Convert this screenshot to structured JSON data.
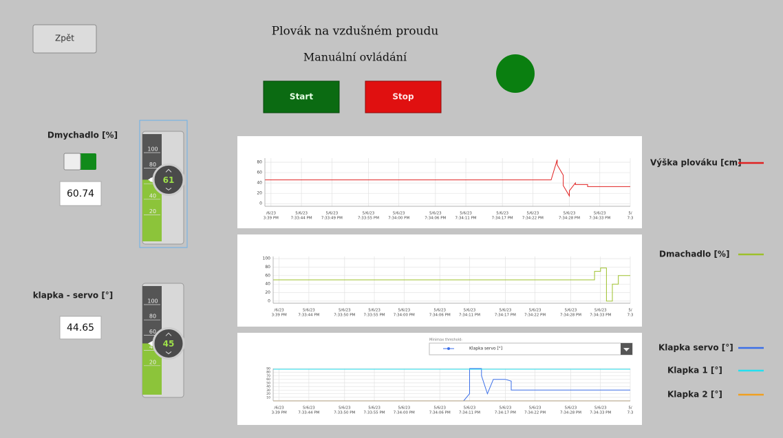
{
  "back_button": "Zpět",
  "title": "Plovák na vzdušném proudu",
  "subtitle": "Manuální ovládání",
  "start_button": "Start",
  "stop_button": "Stop",
  "controls": [
    {
      "label": "Dmychadlo [%]",
      "value": 60.74,
      "thumb_label": "61",
      "range": [
        0,
        100
      ],
      "ticks": [
        100,
        80,
        60,
        40,
        20
      ]
    },
    {
      "label": "klapka - servo [°]",
      "value": 44.65,
      "thumb_label": "45",
      "range": [
        0,
        100
      ],
      "ticks": [
        100,
        80,
        60,
        40,
        20
      ]
    }
  ],
  "chart_controls": {
    "threshold_label": "Minimax threshold:",
    "selected_series": "Klapka servo [°]"
  },
  "charts": [
    {
      "type": "line",
      "grid": true,
      "xlim": [
        "7:33:38 PM",
        "7:34:38 PM"
      ],
      "ylim": [
        -5,
        88
      ],
      "yticks": [
        0,
        20,
        40,
        60,
        80
      ],
      "xticks": [
        {
          "value": "7:33:39 PM",
          "date": "/6/23",
          "time": "3:39 PM"
        },
        {
          "value": "7:33:44 PM",
          "date": "5/6/23",
          "time": "7:33:44 PM"
        },
        {
          "value": "7:33:49 PM",
          "date": "5/6/23",
          "time": "7:33:49 PM"
        },
        {
          "value": "7:33:55 PM",
          "date": "5/6/23",
          "time": "7:33:55 PM"
        },
        {
          "value": "7:34:00 PM",
          "date": "5/6/23",
          "time": "7:34:00 PM"
        },
        {
          "value": "7:34:06 PM",
          "date": "5/6/23",
          "time": "7:34:06 PM"
        },
        {
          "value": "7:34:11 PM",
          "date": "5/6/23",
          "time": "7:34:11 PM"
        },
        {
          "value": "7:34:17 PM",
          "date": "5/6/23",
          "time": "7:34:17 PM"
        },
        {
          "value": "7:34:22 PM",
          "date": "5/6/23",
          "time": "7:34:22 PM"
        },
        {
          "value": "7:34:28 PM",
          "date": "5/6/23",
          "time": "7:34:28 PM"
        },
        {
          "value": "7:34:33 PM",
          "date": "5/6/23",
          "time": "7:34:33 PM"
        },
        {
          "value": "7:34:38 PM",
          "date": "5/",
          "time": "7:3"
        }
      ],
      "series": [
        {
          "name": "Výška plováku [cm]",
          "color": "#e02020",
          "x": [
            "7:33:38 PM",
            "7:34:25 PM",
            "7:34:26 PM",
            "7:34:26 PM",
            "7:34:27 PM",
            "7:34:27 PM",
            "7:34:28 PM",
            "7:34:28 PM",
            "7:34:29 PM",
            "7:34:29 PM",
            "7:34:31 PM",
            "7:34:31 PM",
            "7:34:38 PM"
          ],
          "values": [
            46,
            46,
            85,
            75,
            55,
            35,
            15,
            25,
            40,
            37,
            37,
            33,
            33
          ]
        }
      ]
    },
    {
      "type": "line",
      "grid": true,
      "xlim": [
        "7:33:38 PM",
        "7:34:38 PM"
      ],
      "ylim": [
        -5,
        105
      ],
      "yticks": [
        0,
        20,
        40,
        60,
        80,
        100
      ],
      "xticks": [
        {
          "value": "7:33:39 PM",
          "date": "/6/23",
          "time": "3:39 PM"
        },
        {
          "value": "7:33:44 PM",
          "date": "5/6/23",
          "time": "7:33:44 PM"
        },
        {
          "value": "7:33:50 PM",
          "date": "5/6/23",
          "time": "7:33:50 PM"
        },
        {
          "value": "7:33:55 PM",
          "date": "5/6/23",
          "time": "7:33:55 PM"
        },
        {
          "value": "7:34:00 PM",
          "date": "5/6/23",
          "time": "7:34:00 PM"
        },
        {
          "value": "7:34:06 PM",
          "date": "5/6/23",
          "time": "7:34:06 PM"
        },
        {
          "value": "7:34:11 PM",
          "date": "5/6/23",
          "time": "7:34:11 PM"
        },
        {
          "value": "7:34:17 PM",
          "date": "5/6/23",
          "time": "7:34:17 PM"
        },
        {
          "value": "7:34:22 PM",
          "date": "5/6/23",
          "time": "7:34:22 PM"
        },
        {
          "value": "7:34:28 PM",
          "date": "5/6/23",
          "time": "7:34:28 PM"
        },
        {
          "value": "7:34:33 PM",
          "date": "5/6/23",
          "time": "7:34:33 PM"
        },
        {
          "value": "7:34:38 PM",
          "date": "5/",
          "time": "7:3"
        }
      ],
      "series": [
        {
          "name": "Dmachadlo [%]",
          "color": "#9dc02a",
          "x": [
            "7:33:38 PM",
            "7:34:32 PM",
            "7:34:32 PM",
            "7:34:33 PM",
            "7:34:33 PM",
            "7:34:34 PM",
            "7:34:34 PM",
            "7:34:35 PM",
            "7:34:35 PM",
            "7:34:36 PM",
            "7:34:36 PM",
            "7:34:38 PM"
          ],
          "values": [
            50,
            50,
            70,
            70,
            78,
            78,
            0,
            0,
            40,
            40,
            60,
            60
          ]
        }
      ]
    },
    {
      "type": "line",
      "grid": true,
      "xlim": [
        "7:33:38 PM",
        "7:34:38 PM"
      ],
      "ylim": [
        0,
        90
      ],
      "yticks": [
        10,
        20,
        30,
        40,
        50,
        60,
        70,
        80,
        90
      ],
      "xticks": [
        {
          "value": "7:33:39 PM",
          "date": "/6/23",
          "time": "3:39 PM"
        },
        {
          "value": "7:33:44 PM",
          "date": "5/6/23",
          "time": "7:33:44 PM"
        },
        {
          "value": "7:33:50 PM",
          "date": "5/6/23",
          "time": "7:33:50 PM"
        },
        {
          "value": "7:33:55 PM",
          "date": "5/6/23",
          "time": "7:33:55 PM"
        },
        {
          "value": "7:34:00 PM",
          "date": "5/6/23",
          "time": "7:34:00 PM"
        },
        {
          "value": "7:34:06 PM",
          "date": "5/6/23",
          "time": "7:34:06 PM"
        },
        {
          "value": "7:34:11 PM",
          "date": "5/6/23",
          "time": "7:34:11 PM"
        },
        {
          "value": "7:34:17 PM",
          "date": "5/6/23",
          "time": "7:34:17 PM"
        },
        {
          "value": "7:34:22 PM",
          "date": "5/6/23",
          "time": "7:34:22 PM"
        },
        {
          "value": "7:34:28 PM",
          "date": "5/6/23",
          "time": "7:34:28 PM"
        },
        {
          "value": "7:34:33 PM",
          "date": "5/6/23",
          "time": "7:34:33 PM"
        },
        {
          "value": "7:34:38 PM",
          "date": "5/",
          "time": "7:3"
        }
      ],
      "series": [
        {
          "name": "Klapka servo [°]",
          "color": "#3a6ee8",
          "x": [
            "7:33:38 PM",
            "7:34:10 PM",
            "7:34:11 PM",
            "7:34:11 PM",
            "7:34:13 PM",
            "7:34:13 PM",
            "7:34:14 PM",
            "7:34:15 PM",
            "7:34:17 PM",
            "7:34:18 PM",
            "7:34:18 PM",
            "7:34:38 PM"
          ],
          "values": [
            0,
            0,
            20,
            90,
            90,
            70,
            20,
            60,
            60,
            55,
            30,
            30
          ]
        },
        {
          "name": "Klapka 1 [°]",
          "color": "#22e0f0",
          "x": [
            "7:33:38 PM",
            "7:34:38 PM"
          ],
          "values": [
            88,
            88
          ]
        },
        {
          "name": "Klapka 2 [°]",
          "color": "#f0a020",
          "x": [
            "7:33:38 PM",
            "7:34:38 PM"
          ],
          "values": [
            0,
            0
          ]
        }
      ]
    }
  ]
}
